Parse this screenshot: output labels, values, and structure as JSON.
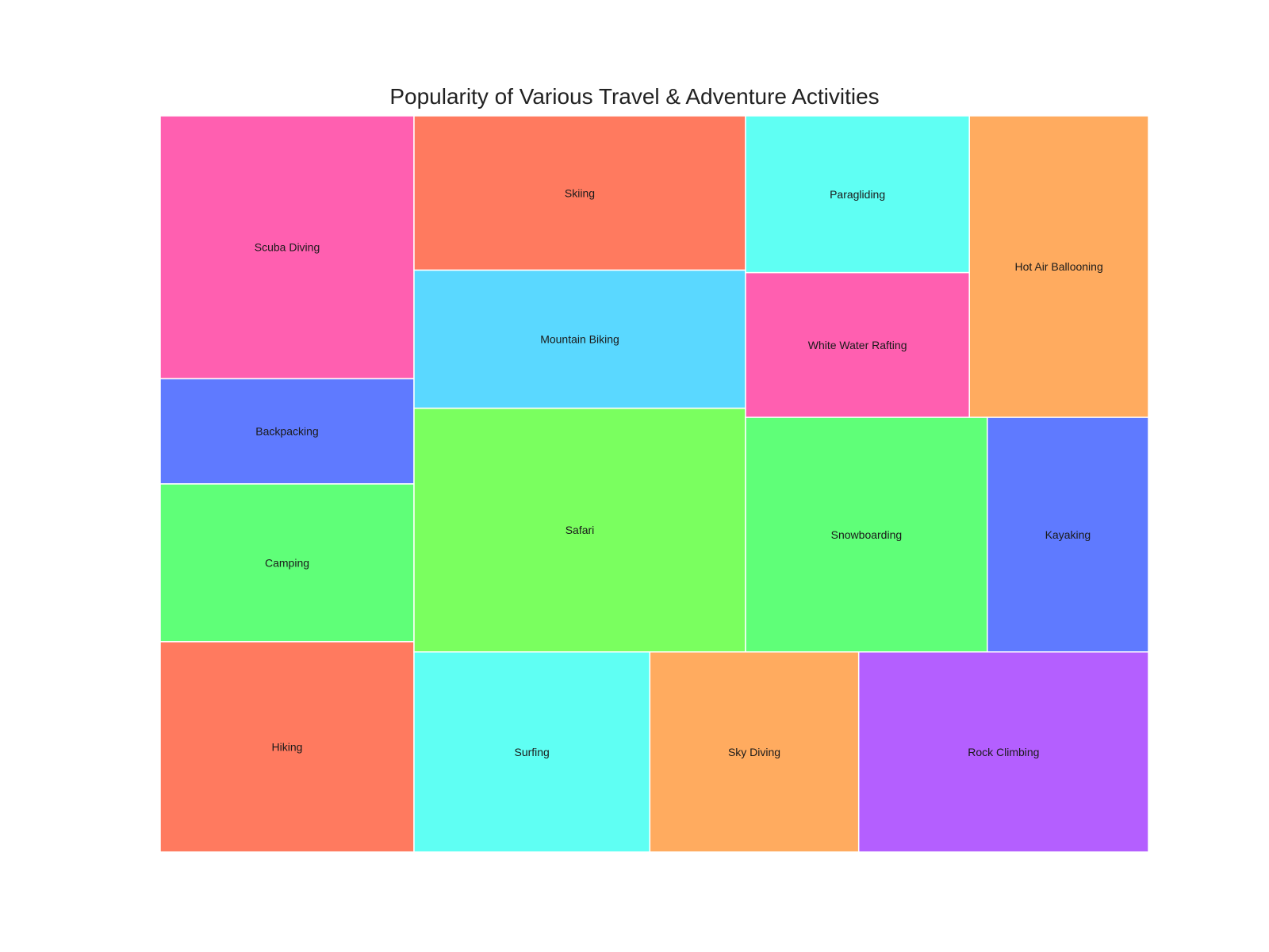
{
  "chart_data": {
    "type": "treemap",
    "title": "Popularity of Various Travel & Adventure Activities",
    "groups": [
      {
        "items": [
          {
            "name": "Scuba Diving",
            "value": 50,
            "color": "#FF5FB0"
          },
          {
            "name": "Backpacking",
            "value": 20,
            "color": "#5F7AFF"
          },
          {
            "name": "Camping",
            "value": 30,
            "color": "#5FFF78"
          },
          {
            "name": "Hiking",
            "value": 40,
            "color": "#FF7A5F"
          }
        ]
      },
      {
        "items": [
          {
            "name": "Skiing",
            "value": 38,
            "color": "#FF7A5F"
          },
          {
            "name": "Mountain Biking",
            "value": 34,
            "color": "#5AD8FF"
          },
          {
            "name": "Safari",
            "value": 60,
            "color": "#7AFF5F"
          }
        ]
      },
      {
        "items": [
          {
            "name": "Paragliding",
            "value": 26,
            "color": "#5FFFF3"
          },
          {
            "name": "White Water Rafting",
            "value": 24,
            "color": "#FF5FB0"
          },
          {
            "name": "Hot Air Ballooning",
            "value": 40,
            "color": "#FFAB5F"
          }
        ]
      },
      {
        "items": [
          {
            "name": "Snowboarding",
            "value": 42,
            "color": "#5FFF78"
          },
          {
            "name": "Kayaking",
            "value": 28,
            "color": "#5F7AFF"
          }
        ]
      },
      {
        "items": [
          {
            "name": "Surfing",
            "value": 35,
            "color": "#5FFFF3"
          },
          {
            "name": "Sky Diving",
            "value": 31,
            "color": "#FFAB5F"
          },
          {
            "name": "Rock Climbing",
            "value": 43,
            "color": "#B45FFF"
          }
        ]
      }
    ]
  }
}
